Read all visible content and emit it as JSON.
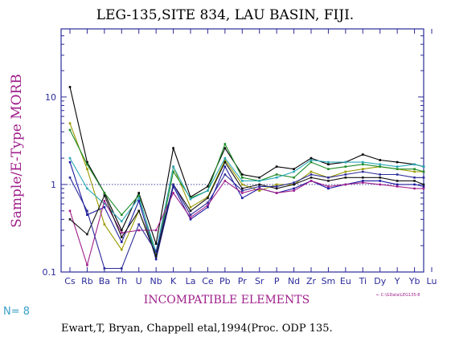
{
  "chart_data": {
    "type": "line",
    "title": "LEG-135,SITE 834, LAU BASIN, FIJI.",
    "ylabel": "Sample/E-Type MORB",
    "xlabel": "INCOMPATIBLE ELEMENTS",
    "yscale": "log",
    "ylim": [
      0.1,
      60
    ],
    "yticks": [
      0.1,
      1,
      10
    ],
    "ytick_labels": [
      "0.1",
      "1",
      "10"
    ],
    "reference_line": 1,
    "reference_line_style": "dotted",
    "categories": [
      "Cs",
      "Rb",
      "Ba",
      "Th",
      "U",
      "Nb",
      "K",
      "La",
      "Ce",
      "Pb",
      "Pr",
      "Sr",
      "P",
      "Nd",
      "Zr",
      "Sm",
      "Eu",
      "Ti",
      "Dy",
      "Y",
      "Yb",
      "Lu"
    ],
    "series": [
      {
        "color": "#000000",
        "values": [
          13.0,
          1.8,
          0.8,
          0.3,
          0.8,
          0.21,
          2.6,
          0.72,
          0.95,
          2.6,
          1.3,
          1.2,
          1.6,
          1.5,
          2.0,
          1.7,
          1.8,
          2.2,
          1.9,
          1.8,
          1.7,
          1.6
        ]
      },
      {
        "color": "#9a9a00",
        "values": [
          5.0,
          1.5,
          0.35,
          0.18,
          0.5,
          0.16,
          1.6,
          0.55,
          0.72,
          1.9,
          1.0,
          0.85,
          1.0,
          1.0,
          1.4,
          1.2,
          1.4,
          1.5,
          1.6,
          1.5,
          1.4,
          1.4
        ]
      },
      {
        "color": "#1e8c28",
        "values": [
          4.2,
          1.7,
          0.8,
          0.45,
          0.75,
          0.15,
          1.4,
          0.7,
          0.85,
          2.9,
          1.2,
          1.1,
          1.3,
          1.2,
          1.8,
          1.5,
          1.6,
          1.7,
          1.6,
          1.5,
          1.5,
          1.4
        ]
      },
      {
        "color": "#2ba8b8",
        "values": [
          2.0,
          0.9,
          0.6,
          0.38,
          0.7,
          0.17,
          1.6,
          0.68,
          0.85,
          2.0,
          1.1,
          1.1,
          1.2,
          1.4,
          1.9,
          1.8,
          1.8,
          1.8,
          1.7,
          1.6,
          1.7,
          1.6
        ]
      },
      {
        "color": "#1a1aa0",
        "values": [
          1.8,
          0.45,
          0.55,
          0.22,
          0.65,
          0.14,
          0.95,
          0.4,
          0.55,
          1.6,
          0.7,
          0.9,
          0.8,
          0.9,
          1.1,
          0.9,
          1.0,
          1.1,
          1.1,
          1.0,
          1.0,
          0.95
        ]
      },
      {
        "color": "#a0208c",
        "values": [
          0.5,
          0.12,
          0.65,
          0.28,
          0.3,
          0.3,
          0.8,
          0.42,
          0.58,
          1.1,
          0.8,
          0.9,
          0.8,
          0.85,
          1.1,
          0.95,
          1.0,
          1.05,
          1.0,
          0.95,
          0.9,
          0.9
        ]
      },
      {
        "color": "#141414",
        "values": [
          0.4,
          0.27,
          0.75,
          0.25,
          0.5,
          0.15,
          1.0,
          0.5,
          0.7,
          1.8,
          0.9,
          1.0,
          0.9,
          1.0,
          1.2,
          1.1,
          1.2,
          1.2,
          1.2,
          1.1,
          1.1,
          1.0
        ]
      },
      {
        "color": "#2b2b9a",
        "values": [
          1.2,
          0.5,
          0.11,
          0.11,
          0.35,
          0.17,
          1.0,
          0.45,
          0.62,
          1.3,
          0.85,
          0.95,
          0.95,
          1.05,
          1.3,
          1.2,
          1.3,
          1.4,
          1.3,
          1.3,
          1.2,
          1.2
        ]
      }
    ]
  },
  "count_label": "N= 8",
  "citation": "Ewart,T, Bryan, Chappell etal,1994(Proc. ODP 135.",
  "file_annotation": "← C:\\GData\\LEG135-8",
  "colors": {
    "axis": "#2b2b9a",
    "label": "#a0208c",
    "count": "#3aa0c8"
  }
}
